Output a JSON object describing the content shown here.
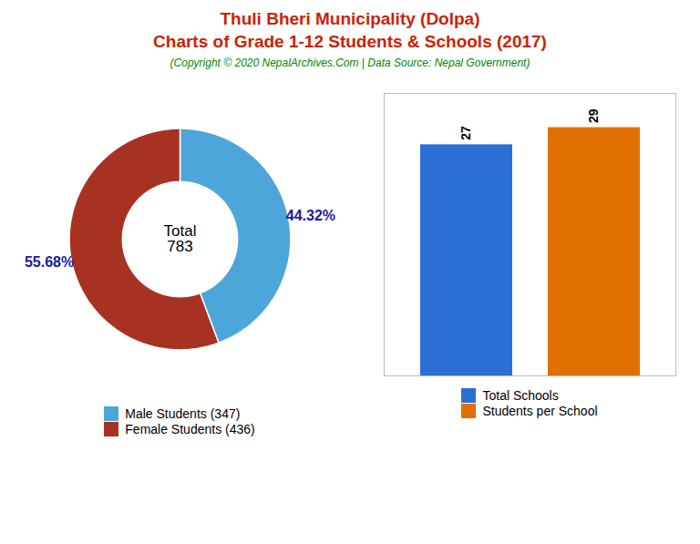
{
  "title": "Thuli Bheri Municipality (Dolpa)\nCharts of Grade 1-12 Students & Schools (2017)",
  "subtitle": "(Copyright © 2020 NepalArchives.Com | Data Source: Nepal Government)",
  "chart_data": [
    {
      "type": "donut",
      "categories": [
        "Male Students (347)",
        "Female Students (436)"
      ],
      "values": [
        44.32,
        55.68
      ],
      "value_labels": [
        "44.32%",
        "55.68%"
      ],
      "colors": [
        "#4da6d9",
        "#a83222"
      ],
      "annotations": [
        "Total\n783"
      ],
      "data_labels": true,
      "legend": "bottom"
    },
    {
      "type": "bar",
      "categories": [
        "Total Schools",
        "Students per School"
      ],
      "values": [
        27,
        29
      ],
      "colors": [
        "#2b6fd4",
        "#e07000"
      ],
      "ylim": [
        0,
        33
      ],
      "tick_labels": false,
      "grid": false,
      "data_labels": true,
      "legend": "bottom"
    }
  ]
}
